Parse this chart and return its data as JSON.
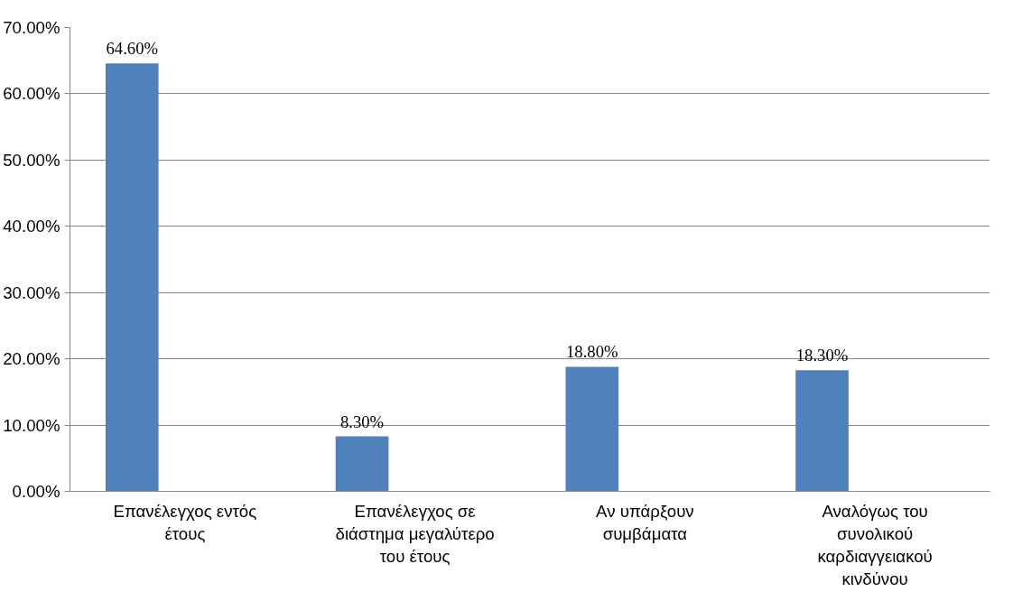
{
  "chart_data": {
    "type": "bar",
    "categories": [
      "Επανέλεγχος εντός έτους",
      "Επανέλεγχος σε διάστημα μεγαλύτερο του έτους",
      "Αν υπάρξουν συμβάματα",
      "Αναλόγως του συνολικού καρδιαγγειακού κινδύνου"
    ],
    "values": [
      64.6,
      8.3,
      18.8,
      18.3
    ],
    "value_labels": [
      "64.60%",
      "8.30%",
      "18.80%",
      "18.30%"
    ],
    "color": "#4f81bd",
    "ylim": [
      0,
      70
    ],
    "yticks": [
      {
        "value": 0,
        "label": "0.00%"
      },
      {
        "value": 10,
        "label": "10.00%"
      },
      {
        "value": 20,
        "label": "20.00%"
      },
      {
        "value": 30,
        "label": "30.00%"
      },
      {
        "value": 40,
        "label": "40.00%"
      },
      {
        "value": 50,
        "label": "50.00%"
      },
      {
        "value": 60,
        "label": "60.00%"
      },
      {
        "value": 70,
        "label": "70.00%"
      }
    ],
    "grid": "y"
  }
}
